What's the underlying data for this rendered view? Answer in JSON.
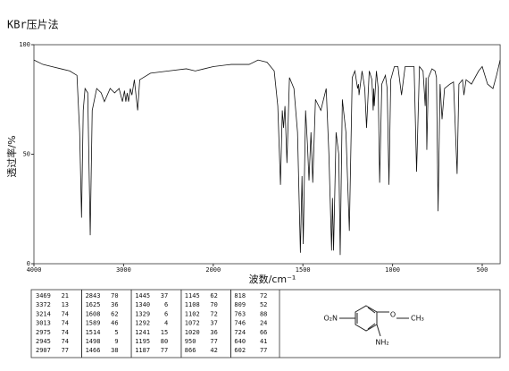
{
  "chart_data": {
    "type": "line",
    "title": "KBr压片法",
    "xlabel": "波数/cm⁻¹",
    "ylabel": "透过率/%",
    "x": [
      4000,
      3900,
      3800,
      3700,
      3600,
      3520,
      3490,
      3469,
      3450,
      3430,
      3400,
      3372,
      3350,
      3300,
      3250,
      3214,
      3150,
      3100,
      3050,
      3013,
      2990,
      2975,
      2960,
      2945,
      2925,
      2907,
      2880,
      2843,
      2820,
      2700,
      2500,
      2300,
      2200,
      2100,
      2000,
      1900,
      1800,
      1750,
      1700,
      1660,
      1640,
      1625,
      1615,
      1608,
      1600,
      1589,
      1575,
      1550,
      1530,
      1514,
      1505,
      1498,
      1485,
      1475,
      1466,
      1455,
      1445,
      1430,
      1400,
      1370,
      1355,
      1340,
      1335,
      1329,
      1315,
      1300,
      1292,
      1280,
      1260,
      1241,
      1225,
      1210,
      1195,
      1190,
      1187,
      1170,
      1155,
      1145,
      1130,
      1115,
      1108,
      1105,
      1102,
      1090,
      1080,
      1072,
      1060,
      1040,
      1030,
      1020,
      1010,
      990,
      970,
      950,
      930,
      900,
      880,
      866,
      850,
      830,
      818,
      813,
      809,
      800,
      780,
      763,
      755,
      746,
      735,
      724,
      710,
      680,
      660,
      640,
      630,
      610,
      602,
      590,
      560,
      540,
      520,
      500,
      470,
      440,
      420,
      400
    ],
    "values": [
      93,
      91,
      90,
      89,
      88,
      86,
      60,
      21,
      70,
      80,
      78,
      13,
      70,
      80,
      78,
      74,
      80,
      78,
      80,
      74,
      79,
      74,
      78,
      74,
      80,
      77,
      84,
      70,
      84,
      87,
      88,
      89,
      88,
      89,
      90,
      91,
      91,
      93,
      92,
      88,
      72,
      36,
      70,
      62,
      72,
      46,
      85,
      80,
      60,
      5,
      40,
      9,
      70,
      55,
      38,
      60,
      37,
      75,
      70,
      80,
      50,
      6,
      30,
      6,
      60,
      50,
      4,
      75,
      60,
      15,
      85,
      88,
      80,
      82,
      77,
      88,
      80,
      62,
      88,
      84,
      70,
      80,
      72,
      88,
      80,
      37,
      82,
      86,
      80,
      36,
      84,
      90,
      90,
      77,
      90,
      90,
      90,
      42,
      90,
      88,
      72,
      85,
      52,
      85,
      89,
      88,
      85,
      24,
      82,
      66,
      80,
      82,
      83,
      41,
      82,
      84,
      77,
      84,
      82,
      85,
      88,
      90,
      82,
      80,
      86,
      93
    ],
    "color": "#111111",
    "xlim": [
      4000,
      400
    ],
    "xticks": [
      4000,
      3000,
      2000,
      1500,
      1000,
      500
    ],
    "ylim": [
      0,
      100
    ],
    "yticks": [
      0,
      50,
      100
    ]
  },
  "table": {
    "rows": [
      [
        [
          3469,
          21
        ],
        [
          2843,
          70
        ],
        [
          1445,
          37
        ],
        [
          1145,
          62
        ],
        [
          818,
          72
        ]
      ],
      [
        [
          3372,
          13
        ],
        [
          1625,
          36
        ],
        [
          1340,
          6
        ],
        [
          1108,
          70
        ],
        [
          809,
          52
        ]
      ],
      [
        [
          3214,
          74
        ],
        [
          1608,
          62
        ],
        [
          1329,
          6
        ],
        [
          1102,
          72
        ],
        [
          763,
          88
        ]
      ],
      [
        [
          3013,
          74
        ],
        [
          1589,
          46
        ],
        [
          1292,
          4
        ],
        [
          1072,
          37
        ],
        [
          746,
          24
        ]
      ],
      [
        [
          2975,
          74
        ],
        [
          1514,
          5
        ],
        [
          1241,
          15
        ],
        [
          1020,
          36
        ],
        [
          724,
          66
        ]
      ],
      [
        [
          2945,
          74
        ],
        [
          1498,
          9
        ],
        [
          1195,
          80
        ],
        [
          950,
          77
        ],
        [
          640,
          41
        ]
      ],
      [
        [
          2907,
          77
        ],
        [
          1466,
          38
        ],
        [
          1187,
          77
        ],
        [
          866,
          42
        ],
        [
          602,
          77
        ]
      ]
    ]
  },
  "structure": {
    "nitro": "O₂N",
    "ether": "O",
    "methyl": "CH₃",
    "amine": "NH₂"
  }
}
